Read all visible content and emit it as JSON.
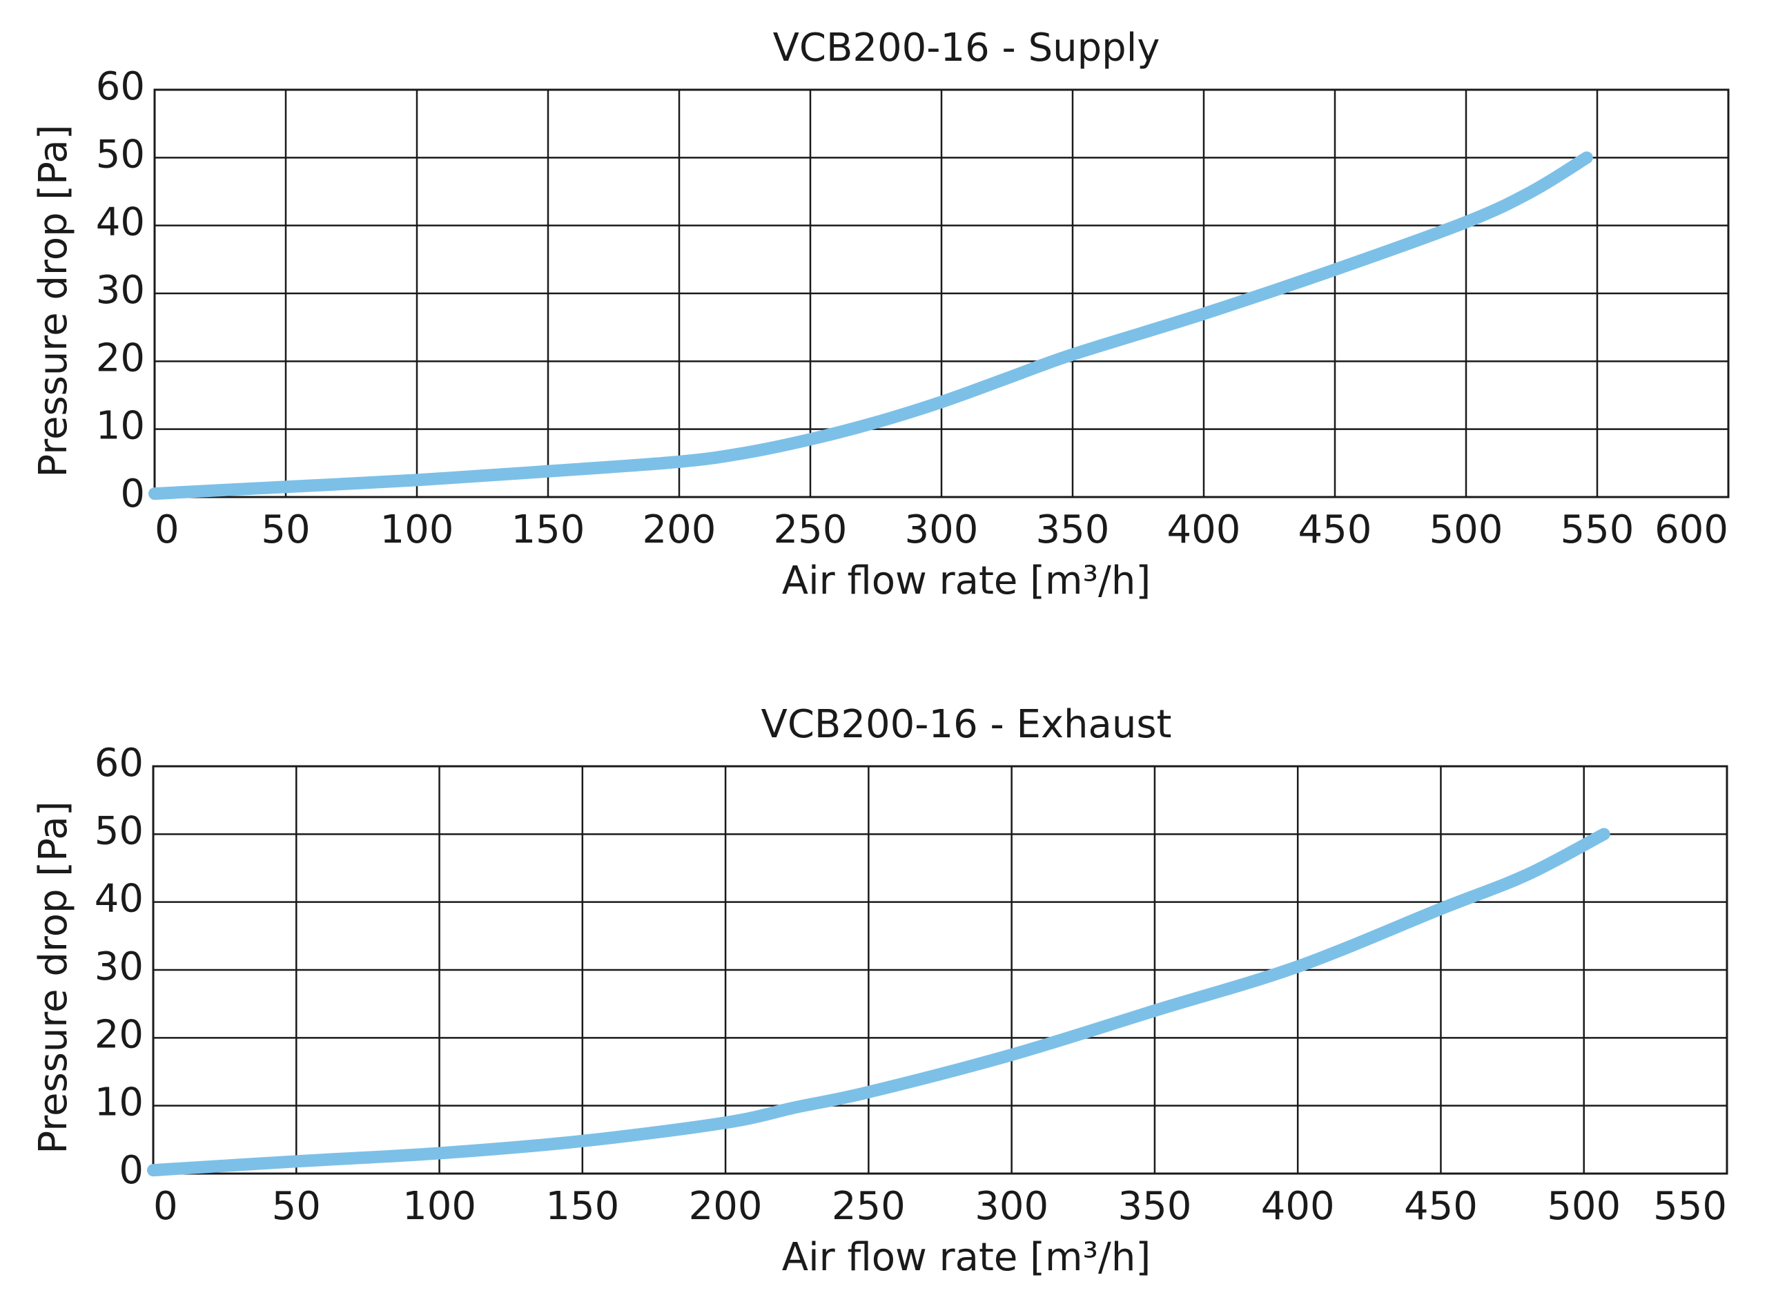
{
  "chart_data": [
    {
      "type": "line",
      "title": "VCB200-16 - Supply",
      "xlabel": "Air flow rate [m³/h]",
      "ylabel": "Pressure drop [Pa]",
      "xlim": [
        0,
        600
      ],
      "ylim": [
        0,
        60
      ],
      "xticks": [
        0,
        50,
        100,
        150,
        200,
        250,
        300,
        350,
        400,
        450,
        500,
        550,
        600
      ],
      "yticks": [
        0,
        10,
        20,
        30,
        40,
        50,
        60
      ],
      "grid": true,
      "line_color": "#7cc0e8",
      "series": [
        {
          "x": [
            0,
            50,
            100,
            150,
            200,
            225,
            250,
            275,
            300,
            325,
            350,
            400,
            450,
            500,
            525,
            546
          ],
          "y": [
            0.5,
            1.5,
            2.5,
            3.8,
            5.2,
            6.5,
            8.5,
            11,
            14,
            17.5,
            21,
            27,
            33.5,
            40.5,
            45,
            50
          ]
        }
      ]
    },
    {
      "type": "line",
      "title": "VCB200-16 - Exhaust",
      "xlabel": "Air flow rate [m³/h]",
      "ylabel": "Pressure drop [Pa]",
      "xlim": [
        0,
        550
      ],
      "ylim": [
        0,
        60
      ],
      "xticks": [
        0,
        50,
        100,
        150,
        200,
        250,
        300,
        350,
        400,
        450,
        500,
        550
      ],
      "yticks": [
        0,
        10,
        20,
        30,
        40,
        50,
        60
      ],
      "grid": true,
      "line_color": "#7cc0e8",
      "series": [
        {
          "x": [
            0,
            50,
            100,
            150,
            200,
            225,
            250,
            300,
            350,
            400,
            450,
            480,
            507
          ],
          "y": [
            0.5,
            1.8,
            3,
            4.8,
            7.5,
            9.8,
            12,
            17.5,
            24,
            30.5,
            39,
            44,
            50
          ]
        }
      ]
    }
  ]
}
